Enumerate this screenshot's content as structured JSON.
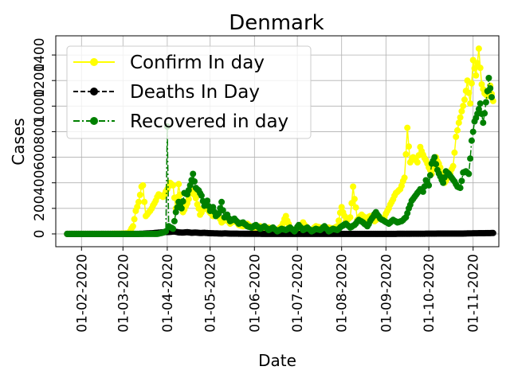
{
  "chart_data": {
    "type": "line",
    "title": "Denmark",
    "xlabel": "Date",
    "ylabel": "Cases",
    "x_range": [
      "2020-01-14",
      "2020-11-19"
    ],
    "ylim": [
      -100,
      1550
    ],
    "yticks": [
      "0",
      "200",
      "400",
      "600",
      "800",
      "1000",
      "1200",
      "1400"
    ],
    "xticks": [
      "01-02-2020",
      "01-03-2020",
      "01-04-2020",
      "01-05-2020",
      "01-06-2020",
      "01-07-2020",
      "01-08-2020",
      "01-09-2020",
      "01-10-2020",
      "01-11-2020"
    ],
    "grid": true,
    "legend_position": "upper-left",
    "series": [
      {
        "name": "Confirm In day",
        "color": "#ffff00",
        "line_style": "solid",
        "marker": "circle",
        "points": [
          [
            "2020-01-22",
            0
          ],
          [
            "2020-02-15",
            0
          ],
          [
            "2020-02-27",
            1
          ],
          [
            "2020-03-05",
            5
          ],
          [
            "2020-03-08",
            60
          ],
          [
            "2020-03-10",
            180
          ],
          [
            "2020-03-12",
            250
          ],
          [
            "2020-03-14",
            370
          ],
          [
            "2020-03-15",
            380
          ],
          [
            "2020-03-17",
            140
          ],
          [
            "2020-03-20",
            180
          ],
          [
            "2020-03-23",
            240
          ],
          [
            "2020-03-26",
            310
          ],
          [
            "2020-03-29",
            290
          ],
          [
            "2020-04-01",
            350
          ],
          [
            "2020-04-03",
            400
          ],
          [
            "2020-04-05",
            380
          ],
          [
            "2020-04-07",
            200
          ],
          [
            "2020-04-09",
            390
          ],
          [
            "2020-04-12",
            170
          ],
          [
            "2020-04-15",
            240
          ],
          [
            "2020-04-18",
            350
          ],
          [
            "2020-04-21",
            280
          ],
          [
            "2020-04-24",
            150
          ],
          [
            "2020-04-27",
            210
          ],
          [
            "2020-04-30",
            180
          ],
          [
            "2020-05-03",
            140
          ],
          [
            "2020-05-06",
            160
          ],
          [
            "2020-05-09",
            90
          ],
          [
            "2020-05-12",
            120
          ],
          [
            "2020-05-15",
            80
          ],
          [
            "2020-05-18",
            110
          ],
          [
            "2020-05-21",
            70
          ],
          [
            "2020-05-24",
            60
          ],
          [
            "2020-05-27",
            80
          ],
          [
            "2020-05-30",
            50
          ],
          [
            "2020-06-02",
            40
          ],
          [
            "2020-06-05",
            60
          ],
          [
            "2020-06-08",
            30
          ],
          [
            "2020-06-11",
            50
          ],
          [
            "2020-06-14",
            40
          ],
          [
            "2020-06-17",
            30
          ],
          [
            "2020-06-20",
            60
          ],
          [
            "2020-06-23",
            140
          ],
          [
            "2020-06-26",
            40
          ],
          [
            "2020-06-29",
            30
          ],
          [
            "2020-07-02",
            20
          ],
          [
            "2020-07-05",
            90
          ],
          [
            "2020-07-08",
            40
          ],
          [
            "2020-07-11",
            30
          ],
          [
            "2020-07-14",
            60
          ],
          [
            "2020-07-17",
            50
          ],
          [
            "2020-07-20",
            30
          ],
          [
            "2020-07-23",
            50
          ],
          [
            "2020-07-26",
            40
          ],
          [
            "2020-07-29",
            60
          ],
          [
            "2020-08-01",
            210
          ],
          [
            "2020-08-04",
            100
          ],
          [
            "2020-08-07",
            130
          ],
          [
            "2020-08-09",
            370
          ],
          [
            "2020-08-12",
            110
          ],
          [
            "2020-08-15",
            150
          ],
          [
            "2020-08-18",
            120
          ],
          [
            "2020-08-21",
            140
          ],
          [
            "2020-08-24",
            100
          ],
          [
            "2020-08-27",
            130
          ],
          [
            "2020-08-30",
            110
          ],
          [
            "2020-09-02",
            180
          ],
          [
            "2020-09-05",
            250
          ],
          [
            "2020-09-08",
            320
          ],
          [
            "2020-09-11",
            350
          ],
          [
            "2020-09-14",
            440
          ],
          [
            "2020-09-16",
            830
          ],
          [
            "2020-09-18",
            560
          ],
          [
            "2020-09-20",
            600
          ],
          [
            "2020-09-23",
            560
          ],
          [
            "2020-09-25",
            680
          ],
          [
            "2020-09-27",
            620
          ],
          [
            "2020-09-30",
            550
          ],
          [
            "2020-10-03",
            470
          ],
          [
            "2020-10-06",
            600
          ],
          [
            "2020-10-09",
            520
          ],
          [
            "2020-10-12",
            400
          ],
          [
            "2020-10-15",
            450
          ],
          [
            "2020-10-18",
            530
          ],
          [
            "2020-10-20",
            760
          ],
          [
            "2020-10-22",
            870
          ],
          [
            "2020-10-24",
            960
          ],
          [
            "2020-10-26",
            1050
          ],
          [
            "2020-10-28",
            1200
          ],
          [
            "2020-10-30",
            1020
          ],
          [
            "2020-11-01",
            1360
          ],
          [
            "2020-11-03",
            1240
          ],
          [
            "2020-11-05",
            1450
          ],
          [
            "2020-11-07",
            1170
          ],
          [
            "2020-11-09",
            1100
          ],
          [
            "2020-11-11",
            1080
          ],
          [
            "2020-11-13",
            1160
          ],
          [
            "2020-11-15",
            1040
          ]
        ]
      },
      {
        "name": "Deaths In Day",
        "color": "#000000",
        "line_style": "dashed",
        "marker": "circle",
        "points": [
          [
            "2020-01-22",
            0
          ],
          [
            "2020-03-10",
            0
          ],
          [
            "2020-03-14",
            1
          ],
          [
            "2020-03-18",
            4
          ],
          [
            "2020-03-22",
            6
          ],
          [
            "2020-03-26",
            10
          ],
          [
            "2020-03-30",
            14
          ],
          [
            "2020-04-03",
            16
          ],
          [
            "2020-04-06",
            19
          ],
          [
            "2020-04-09",
            12
          ],
          [
            "2020-04-12",
            10
          ],
          [
            "2020-04-15",
            14
          ],
          [
            "2020-04-18",
            9
          ],
          [
            "2020-04-21",
            11
          ],
          [
            "2020-04-24",
            7
          ],
          [
            "2020-04-27",
            9
          ],
          [
            "2020-04-30",
            6
          ],
          [
            "2020-05-03",
            5
          ],
          [
            "2020-05-06",
            4
          ],
          [
            "2020-05-09",
            3
          ],
          [
            "2020-05-12",
            4
          ],
          [
            "2020-05-15",
            2
          ],
          [
            "2020-05-20",
            2
          ],
          [
            "2020-05-25",
            1
          ],
          [
            "2020-06-01",
            1
          ],
          [
            "2020-06-10",
            0
          ],
          [
            "2020-07-01",
            0
          ],
          [
            "2020-08-01",
            0
          ],
          [
            "2020-09-01",
            0
          ],
          [
            "2020-09-15",
            1
          ],
          [
            "2020-10-01",
            2
          ],
          [
            "2020-10-15",
            3
          ],
          [
            "2020-10-25",
            3
          ],
          [
            "2020-11-01",
            5
          ],
          [
            "2020-11-08",
            6
          ],
          [
            "2020-11-15",
            7
          ]
        ]
      },
      {
        "name": "Recovered in day",
        "color": "#008000",
        "line_style": "dashdot",
        "marker": "circle",
        "points": [
          [
            "2020-01-22",
            0
          ],
          [
            "2020-03-25",
            0
          ],
          [
            "2020-03-29",
            10
          ],
          [
            "2020-03-31",
            20
          ],
          [
            "2020-04-01",
            840
          ],
          [
            "2020-04-02",
            60
          ],
          [
            "2020-04-05",
            40
          ],
          [
            "2020-04-07",
            170
          ],
          [
            "2020-04-09",
            250
          ],
          [
            "2020-04-11",
            200
          ],
          [
            "2020-04-13",
            320
          ],
          [
            "2020-04-15",
            310
          ],
          [
            "2020-04-17",
            380
          ],
          [
            "2020-04-19",
            470
          ],
          [
            "2020-04-21",
            360
          ],
          [
            "2020-04-23",
            340
          ],
          [
            "2020-04-25",
            300
          ],
          [
            "2020-04-27",
            220
          ],
          [
            "2020-04-29",
            260
          ],
          [
            "2020-05-01",
            180
          ],
          [
            "2020-05-03",
            210
          ],
          [
            "2020-05-05",
            140
          ],
          [
            "2020-05-07",
            160
          ],
          [
            "2020-05-09",
            250
          ],
          [
            "2020-05-11",
            130
          ],
          [
            "2020-05-13",
            150
          ],
          [
            "2020-05-15",
            100
          ],
          [
            "2020-05-18",
            120
          ],
          [
            "2020-05-21",
            80
          ],
          [
            "2020-05-24",
            90
          ],
          [
            "2020-05-27",
            60
          ],
          [
            "2020-05-30",
            50
          ],
          [
            "2020-06-02",
            70
          ],
          [
            "2020-06-05",
            40
          ],
          [
            "2020-06-08",
            60
          ],
          [
            "2020-06-11",
            30
          ],
          [
            "2020-06-14",
            50
          ],
          [
            "2020-06-17",
            20
          ],
          [
            "2020-06-20",
            40
          ],
          [
            "2020-06-23",
            30
          ],
          [
            "2020-06-26",
            50
          ],
          [
            "2020-06-29",
            20
          ],
          [
            "2020-07-02",
            70
          ],
          [
            "2020-07-05",
            30
          ],
          [
            "2020-07-08",
            50
          ],
          [
            "2020-07-11",
            20
          ],
          [
            "2020-07-14",
            40
          ],
          [
            "2020-07-17",
            30
          ],
          [
            "2020-07-20",
            60
          ],
          [
            "2020-07-23",
            20
          ],
          [
            "2020-07-26",
            40
          ],
          [
            "2020-07-29",
            30
          ],
          [
            "2020-08-01",
            60
          ],
          [
            "2020-08-04",
            80
          ],
          [
            "2020-08-07",
            50
          ],
          [
            "2020-08-10",
            70
          ],
          [
            "2020-08-13",
            110
          ],
          [
            "2020-08-16",
            90
          ],
          [
            "2020-08-19",
            60
          ],
          [
            "2020-08-22",
            120
          ],
          [
            "2020-08-25",
            170
          ],
          [
            "2020-08-28",
            120
          ],
          [
            "2020-08-31",
            100
          ],
          [
            "2020-09-03",
            80
          ],
          [
            "2020-09-06",
            110
          ],
          [
            "2020-09-09",
            90
          ],
          [
            "2020-09-12",
            100
          ],
          [
            "2020-09-15",
            130
          ],
          [
            "2020-09-17",
            200
          ],
          [
            "2020-09-19",
            260
          ],
          [
            "2020-09-21",
            290
          ],
          [
            "2020-09-23",
            320
          ],
          [
            "2020-09-25",
            350
          ],
          [
            "2020-09-27",
            330
          ],
          [
            "2020-09-29",
            420
          ],
          [
            "2020-10-01",
            380
          ],
          [
            "2020-10-03",
            550
          ],
          [
            "2020-10-05",
            600
          ],
          [
            "2020-10-07",
            500
          ],
          [
            "2020-10-09",
            450
          ],
          [
            "2020-10-11",
            400
          ],
          [
            "2020-10-13",
            490
          ],
          [
            "2020-10-15",
            470
          ],
          [
            "2020-10-17",
            440
          ],
          [
            "2020-10-19",
            410
          ],
          [
            "2020-10-21",
            370
          ],
          [
            "2020-10-23",
            360
          ],
          [
            "2020-10-25",
            480
          ],
          [
            "2020-10-27",
            490
          ],
          [
            "2020-10-29",
            470
          ],
          [
            "2020-10-31",
            730
          ],
          [
            "2020-11-02",
            880
          ],
          [
            "2020-11-04",
            940
          ],
          [
            "2020-11-06",
            1020
          ],
          [
            "2020-11-08",
            870
          ],
          [
            "2020-11-10",
            1030
          ],
          [
            "2020-11-12",
            1220
          ],
          [
            "2020-11-14",
            1070
          ]
        ]
      }
    ]
  }
}
